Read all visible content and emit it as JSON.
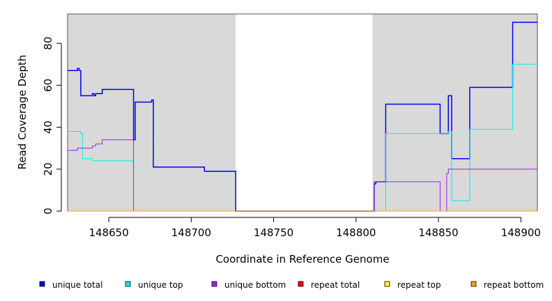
{
  "chart_data": {
    "type": "line",
    "title": "",
    "xlabel": "Coordinate in Reference Genome",
    "ylabel": "Read Coverage Depth",
    "xlim": [
      148625,
      148910
    ],
    "ylim": [
      0,
      94
    ],
    "x_ticks": [
      148650,
      148700,
      148750,
      148800,
      148850,
      148900
    ],
    "y_ticks": [
      0,
      20,
      40,
      60,
      80
    ],
    "shaded_regions": [
      [
        148625,
        148727
      ],
      [
        148810,
        148910
      ]
    ],
    "shade_color": "#d9d9d9",
    "grid": false,
    "legend_position": "bottom",
    "series": [
      {
        "name": "unique total",
        "color": "#0000ee",
        "points": [
          [
            148625,
            67
          ],
          [
            148631,
            67
          ],
          [
            148631,
            68
          ],
          [
            148632,
            68
          ],
          [
            148632,
            67
          ],
          [
            148633,
            67
          ],
          [
            148633,
            55
          ],
          [
            148640,
            55
          ],
          [
            148640,
            56
          ],
          [
            148641,
            56
          ],
          [
            148641,
            55
          ],
          [
            148642,
            55
          ],
          [
            148642,
            56
          ],
          [
            148646,
            56
          ],
          [
            148646,
            58
          ],
          [
            148665,
            58
          ],
          [
            148665,
            34
          ],
          [
            148666,
            34
          ],
          [
            148666,
            52
          ],
          [
            148676,
            52
          ],
          [
            148676,
            53
          ],
          [
            148677,
            53
          ],
          [
            148677,
            21
          ],
          [
            148708,
            21
          ],
          [
            148708,
            19
          ],
          [
            148727,
            19
          ],
          [
            148727,
            0
          ],
          [
            148811,
            0
          ],
          [
            148811,
            13
          ],
          [
            148812,
            13
          ],
          [
            148812,
            14
          ],
          [
            148818,
            14
          ],
          [
            148818,
            51
          ],
          [
            148851,
            51
          ],
          [
            148851,
            37
          ],
          [
            148856,
            37
          ],
          [
            148856,
            55
          ],
          [
            148858,
            55
          ],
          [
            148858,
            25
          ],
          [
            148869,
            25
          ],
          [
            148869,
            59
          ],
          [
            148895,
            59
          ],
          [
            148895,
            90
          ],
          [
            148910,
            90
          ]
        ]
      },
      {
        "name": "unique top",
        "color": "#00eeee",
        "points": [
          [
            148625,
            38
          ],
          [
            148631,
            38
          ],
          [
            148631,
            38
          ],
          [
            148633,
            38
          ],
          [
            148633,
            37
          ],
          [
            148634,
            37
          ],
          [
            148634,
            25
          ],
          [
            148640,
            25
          ],
          [
            148640,
            24
          ],
          [
            148665,
            24
          ],
          [
            148665,
            0
          ],
          [
            148818,
            0
          ],
          [
            148818,
            37
          ],
          [
            148856,
            37
          ],
          [
            148856,
            38
          ],
          [
            148858,
            38
          ],
          [
            148858,
            5
          ],
          [
            148869,
            5
          ],
          [
            148869,
            39
          ],
          [
            148895,
            39
          ],
          [
            148895,
            70
          ],
          [
            148910,
            70
          ]
        ]
      },
      {
        "name": "unique bottom",
        "color": "#a020f0",
        "points": [
          [
            148625,
            29
          ],
          [
            148631,
            29
          ],
          [
            148631,
            30
          ],
          [
            148640,
            30
          ],
          [
            148640,
            31
          ],
          [
            148642,
            31
          ],
          [
            148642,
            32
          ],
          [
            148646,
            32
          ],
          [
            148646,
            34
          ],
          [
            148665,
            34
          ],
          [
            148665,
            0
          ],
          [
            148811,
            0
          ],
          [
            148811,
            14
          ],
          [
            148851,
            14
          ],
          [
            148851,
            0
          ],
          [
            148855,
            0
          ],
          [
            148855,
            18
          ],
          [
            148856,
            18
          ],
          [
            148856,
            20
          ],
          [
            148910,
            20
          ]
        ]
      },
      {
        "name": "repeat total",
        "color": "#ff0000",
        "points": [
          [
            148625,
            0
          ],
          [
            148910,
            0
          ]
        ]
      },
      {
        "name": "repeat top",
        "color": "#ffff00",
        "points": [
          [
            148625,
            0
          ],
          [
            148910,
            0
          ]
        ]
      },
      {
        "name": "repeat bottom",
        "color": "#ffa500",
        "points": [
          [
            148625,
            0
          ],
          [
            148910,
            0
          ]
        ]
      }
    ]
  }
}
